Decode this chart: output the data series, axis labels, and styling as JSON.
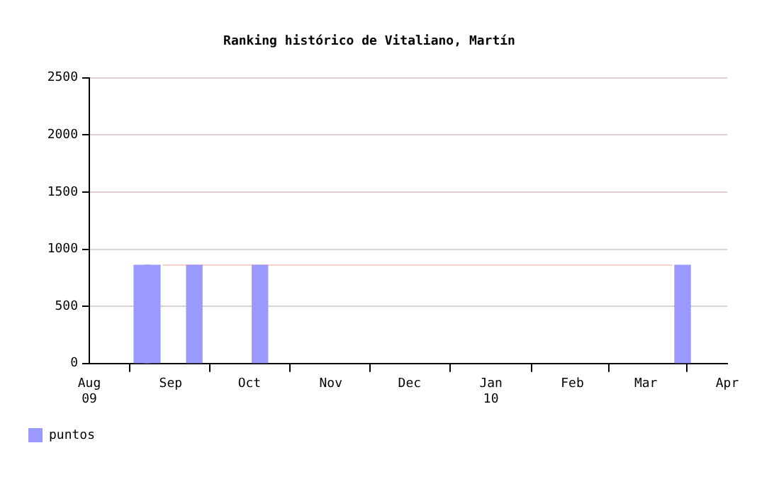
{
  "chart_data": {
    "type": "bar",
    "title": "Ranking histórico de Vitaliano, Martín",
    "x": [
      "2009-08-21",
      "2009-08-25",
      "2009-09-10",
      "2009-10-05",
      "2010-03-15"
    ],
    "series": [
      {
        "name": "puntos",
        "color": "#9999ff",
        "values": [
          860,
          860,
          860,
          860,
          860
        ]
      },
      {
        "type": "line",
        "color": "#ffcccc",
        "x": [
          "2009-08-29",
          "2010-03-11"
        ],
        "values": [
          860,
          860
        ]
      }
    ],
    "ylim": [
      0,
      2500
    ],
    "yticks": [
      0,
      500,
      1000,
      1500,
      2000,
      2500
    ],
    "xlim": [
      "2009-08-01",
      "2010-04-01"
    ],
    "xticks": [
      {
        "value": "2009-08-01",
        "label": "Aug\n09"
      },
      {
        "value": "2009-09-01",
        "label": "Sep"
      },
      {
        "value": "2009-10-01",
        "label": "Oct"
      },
      {
        "value": "2009-11-01",
        "label": "Nov"
      },
      {
        "value": "2009-12-01",
        "label": "Dec"
      },
      {
        "value": "2010-01-01",
        "label": "Jan\n10"
      },
      {
        "value": "2010-02-01",
        "label": "Feb"
      },
      {
        "value": "2010-03-01",
        "label": "Mar"
      },
      {
        "value": "2010-04-01",
        "label": "Apr"
      }
    ],
    "grid": "y",
    "legend": "bottom left",
    "marker": "none"
  }
}
